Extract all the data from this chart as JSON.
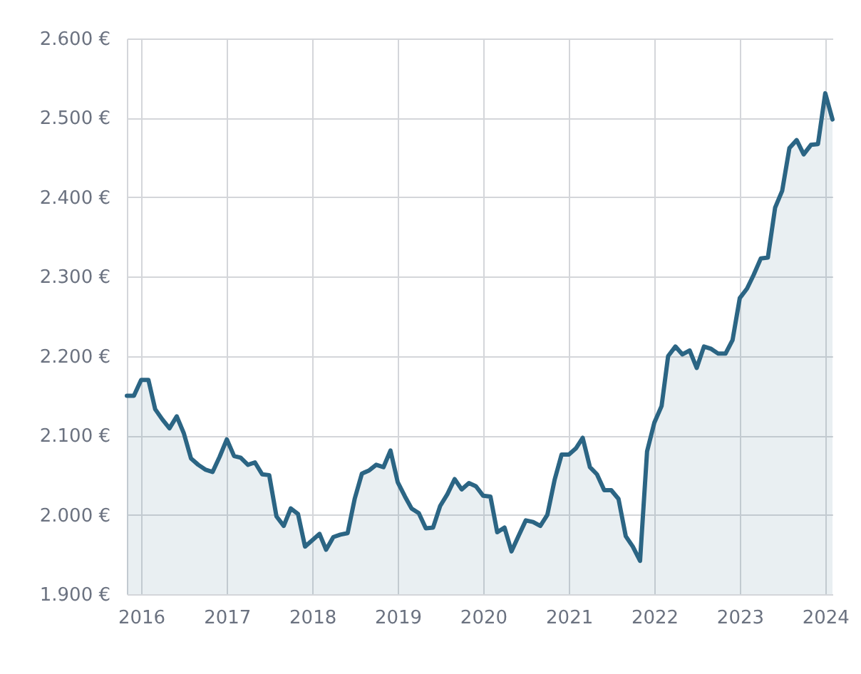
{
  "chart_data": {
    "type": "area",
    "x": [
      "2015-11",
      "2015-12",
      "2016-01",
      "2016-02",
      "2016-03",
      "2016-04",
      "2016-05",
      "2016-06",
      "2016-07",
      "2016-08",
      "2016-09",
      "2016-10",
      "2016-11",
      "2016-12",
      "2017-01",
      "2017-02",
      "2017-03",
      "2017-04",
      "2017-05",
      "2017-06",
      "2017-07",
      "2017-08",
      "2017-09",
      "2017-10",
      "2017-11",
      "2017-12",
      "2018-01",
      "2018-02",
      "2018-03",
      "2018-04",
      "2018-05",
      "2018-06",
      "2018-07",
      "2018-08",
      "2018-09",
      "2018-10",
      "2018-11",
      "2018-12",
      "2019-01",
      "2019-02",
      "2019-03",
      "2019-04",
      "2019-05",
      "2019-06",
      "2019-07",
      "2019-08",
      "2019-09",
      "2019-10",
      "2019-11",
      "2019-12",
      "2020-01",
      "2020-02",
      "2020-03",
      "2020-04",
      "2020-05",
      "2020-06",
      "2020-07",
      "2020-08",
      "2020-09",
      "2020-10",
      "2020-11",
      "2020-12",
      "2021-01",
      "2021-02",
      "2021-03",
      "2021-04",
      "2021-05",
      "2021-06",
      "2021-07",
      "2021-08",
      "2021-09",
      "2021-10",
      "2021-11",
      "2021-12",
      "2022-01",
      "2022-02",
      "2022-03",
      "2022-04",
      "2022-05",
      "2022-06",
      "2022-07",
      "2022-08",
      "2022-09",
      "2022-10",
      "2022-11",
      "2022-12",
      "2023-01",
      "2023-02",
      "2023-03",
      "2023-04",
      "2023-05",
      "2023-06",
      "2023-07",
      "2023-08",
      "2023-09",
      "2023-10",
      "2023-11",
      "2023-12",
      "2024-01",
      "2024-02"
    ],
    "series": [
      {
        "color": "#2b6584",
        "values": [
          2150,
          2150,
          2170,
          2170,
          2133,
          2120,
          2109,
          2124,
          2103,
          2071,
          2063,
          2057,
          2054,
          2073,
          2095,
          2074,
          2072,
          2063,
          2066,
          2051,
          2050,
          1998,
          1986,
          2008,
          2001,
          1960,
          1968,
          1976,
          1956,
          1972,
          1975,
          1977,
          2020,
          2052,
          2056,
          2063,
          2060,
          2081,
          2041,
          2023,
          2008,
          2002,
          1983,
          1984,
          2011,
          2026,
          2045,
          2032,
          2040,
          2036,
          2024,
          2023,
          1978,
          1984,
          1954,
          1974,
          1993,
          1991,
          1986,
          2000,
          2044,
          2076,
          2076,
          2084,
          2097,
          2060,
          2051,
          2031,
          2031,
          2020,
          1973,
          1960,
          1942,
          2080,
          2116,
          2137,
          2200,
          2212,
          2202,
          2207,
          2185,
          2212,
          2209,
          2203,
          2203,
          2220,
          2273,
          2285,
          2302,
          2323,
          2324,
          2387,
          2408,
          2462,
          2472,
          2454,
          2466,
          2467,
          2531,
          2498
        ]
      }
    ],
    "xlim": [
      "2015-11",
      "2024-02"
    ],
    "xticks": [
      "2016",
      "2017",
      "2018",
      "2019",
      "2020",
      "2021",
      "2022",
      "2023",
      "2024"
    ],
    "ylim": [
      1900,
      2600
    ],
    "yticks": [
      {
        "value": 1900,
        "label": "1.900 €"
      },
      {
        "value": 2000,
        "label": "2.000 €"
      },
      {
        "value": 2100,
        "label": "2.100 €"
      },
      {
        "value": 2200,
        "label": "2.200 €"
      },
      {
        "value": 2300,
        "label": "2.300 €"
      },
      {
        "value": 2400,
        "label": "2.400 €"
      },
      {
        "value": 2500,
        "label": "2.500 €"
      },
      {
        "value": 2600,
        "label": "2.600 €"
      }
    ],
    "grid": true,
    "marker": "none",
    "line_style": "solid"
  }
}
